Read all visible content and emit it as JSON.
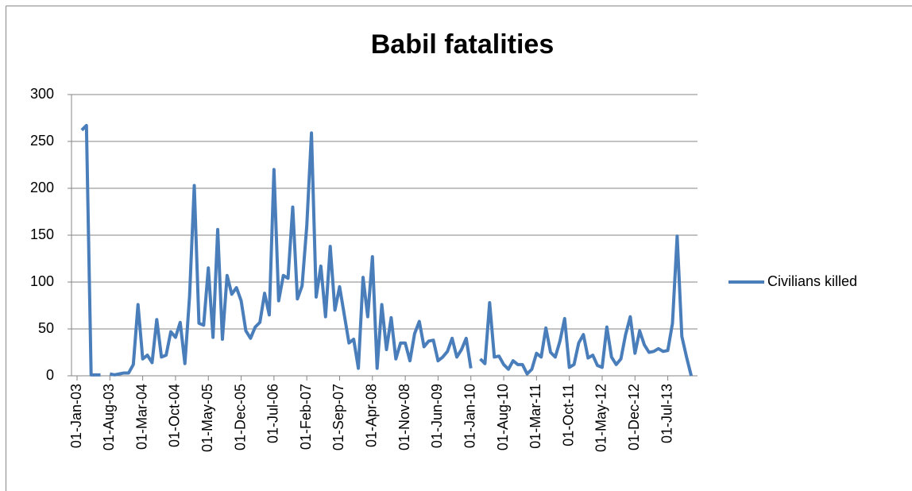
{
  "chart_data": {
    "type": "line",
    "title": "Babil fatalities",
    "x": [
      "01-Feb-03",
      "01-Mar-03",
      "01-Apr-03",
      "01-May-03",
      "01-Jun-03",
      "01-Jul-03",
      "01-Aug-03",
      "01-Sep-03",
      "01-Oct-03",
      "01-Nov-03",
      "01-Dec-03",
      "01-Jan-04",
      "01-Feb-04",
      "01-Mar-04",
      "01-Apr-04",
      "01-May-04",
      "01-Jun-04",
      "01-Jul-04",
      "01-Aug-04",
      "01-Sep-04",
      "01-Oct-04",
      "01-Nov-04",
      "01-Dec-04",
      "01-Jan-05",
      "01-Feb-05",
      "01-Mar-05",
      "01-Apr-05",
      "01-May-05",
      "01-Jun-05",
      "01-Jul-05",
      "01-Aug-05",
      "01-Sep-05",
      "01-Oct-05",
      "01-Nov-05",
      "01-Dec-05",
      "01-Jan-06",
      "01-Feb-06",
      "01-Mar-06",
      "01-Apr-06",
      "01-May-06",
      "01-Jun-06",
      "01-Jul-06",
      "01-Aug-06",
      "01-Sep-06",
      "01-Oct-06",
      "01-Nov-06",
      "01-Dec-06",
      "01-Jan-07",
      "01-Feb-07",
      "01-Mar-07",
      "01-Apr-07",
      "01-May-07",
      "01-Jun-07",
      "01-Jul-07",
      "01-Aug-07",
      "01-Sep-07",
      "01-Oct-07",
      "01-Nov-07",
      "01-Dec-07",
      "01-Jan-08",
      "01-Feb-08",
      "01-Mar-08",
      "01-Apr-08",
      "01-May-08",
      "01-Jun-08",
      "01-Jul-08",
      "01-Aug-08",
      "01-Sep-08",
      "01-Oct-08",
      "01-Nov-08",
      "01-Dec-08",
      "01-Jan-09",
      "01-Feb-09",
      "01-Mar-09",
      "01-Apr-09",
      "01-May-09",
      "01-Jun-09",
      "01-Jul-09",
      "01-Aug-09",
      "01-Sep-09",
      "01-Oct-09",
      "01-Nov-09",
      "01-Dec-09",
      "01-Jan-10",
      "01-Feb-10",
      "01-Mar-10",
      "01-Apr-10",
      "01-May-10",
      "01-Jun-10",
      "01-Jul-10",
      "01-Aug-10",
      "01-Sep-10",
      "01-Oct-10",
      "01-Nov-10",
      "01-Dec-10",
      "01-Jan-11",
      "01-Feb-11",
      "01-Mar-11",
      "01-Apr-11",
      "01-May-11",
      "01-Jun-11",
      "01-Jul-11",
      "01-Aug-11",
      "01-Sep-11",
      "01-Oct-11",
      "01-Nov-11",
      "01-Dec-11",
      "01-Jan-12",
      "01-Feb-12",
      "01-Mar-12",
      "01-Apr-12",
      "01-May-12",
      "01-Jun-12",
      "01-Jul-12",
      "01-Aug-12",
      "01-Sep-12",
      "01-Oct-12",
      "01-Nov-12",
      "01-Dec-12",
      "01-Jan-13",
      "01-Feb-13",
      "01-Mar-13",
      "01-Apr-13",
      "01-May-13",
      "01-Jun-13",
      "01-Jul-13",
      "01-Aug-13",
      "01-Sep-13",
      "01-Oct-13",
      "01-Nov-13",
      "01-Dec-13"
    ],
    "series": [
      {
        "name": "Civilians killed",
        "color": "#4a7ebb",
        "values": [
          262,
          267,
          1,
          1,
          1,
          null,
          2,
          1,
          2,
          3,
          3,
          12,
          76,
          18,
          22,
          14,
          60,
          20,
          22,
          47,
          41,
          57,
          13,
          85,
          203,
          56,
          54,
          115,
          41,
          156,
          39,
          107,
          87,
          94,
          80,
          48,
          40,
          52,
          57,
          88,
          65,
          220,
          80,
          107,
          104,
          180,
          82,
          96,
          160,
          259,
          84,
          117,
          63,
          138,
          70,
          95,
          65,
          35,
          39,
          8,
          105,
          63,
          127,
          8,
          76,
          28,
          62,
          18,
          35,
          35,
          16,
          45,
          58,
          31,
          37,
          38,
          16,
          20,
          26,
          40,
          20,
          28,
          40,
          8,
          null,
          18,
          13,
          78,
          20,
          21,
          12,
          7,
          16,
          12,
          12,
          2,
          7,
          24,
          20,
          51,
          25,
          20,
          37,
          61,
          9,
          12,
          35,
          44,
          19,
          22,
          11,
          9,
          52,
          20,
          12,
          18,
          44,
          63,
          24,
          48,
          33,
          25,
          26,
          29,
          26,
          27,
          56,
          149,
          42,
          20,
          0
        ]
      }
    ],
    "xlim": [
      "01-Jan-03",
      "01-Jan-14"
    ],
    "xticks": [
      "01-Jan-03",
      "01-Aug-03",
      "01-Mar-04",
      "01-Oct-04",
      "01-May-05",
      "01-Dec-05",
      "01-Jul-06",
      "01-Feb-07",
      "01-Sep-07",
      "01-Apr-08",
      "01-Nov-08",
      "01-Jun-09",
      "01-Jan-10",
      "01-Aug-10",
      "01-Mar-11",
      "01-Oct-11",
      "01-May-12",
      "01-Dec-12",
      "01-Jul-13"
    ],
    "ylim": [
      0,
      300
    ],
    "yticks": [
      0,
      50,
      100,
      150,
      200,
      250,
      300
    ],
    "grid": true,
    "legend": "right"
  }
}
